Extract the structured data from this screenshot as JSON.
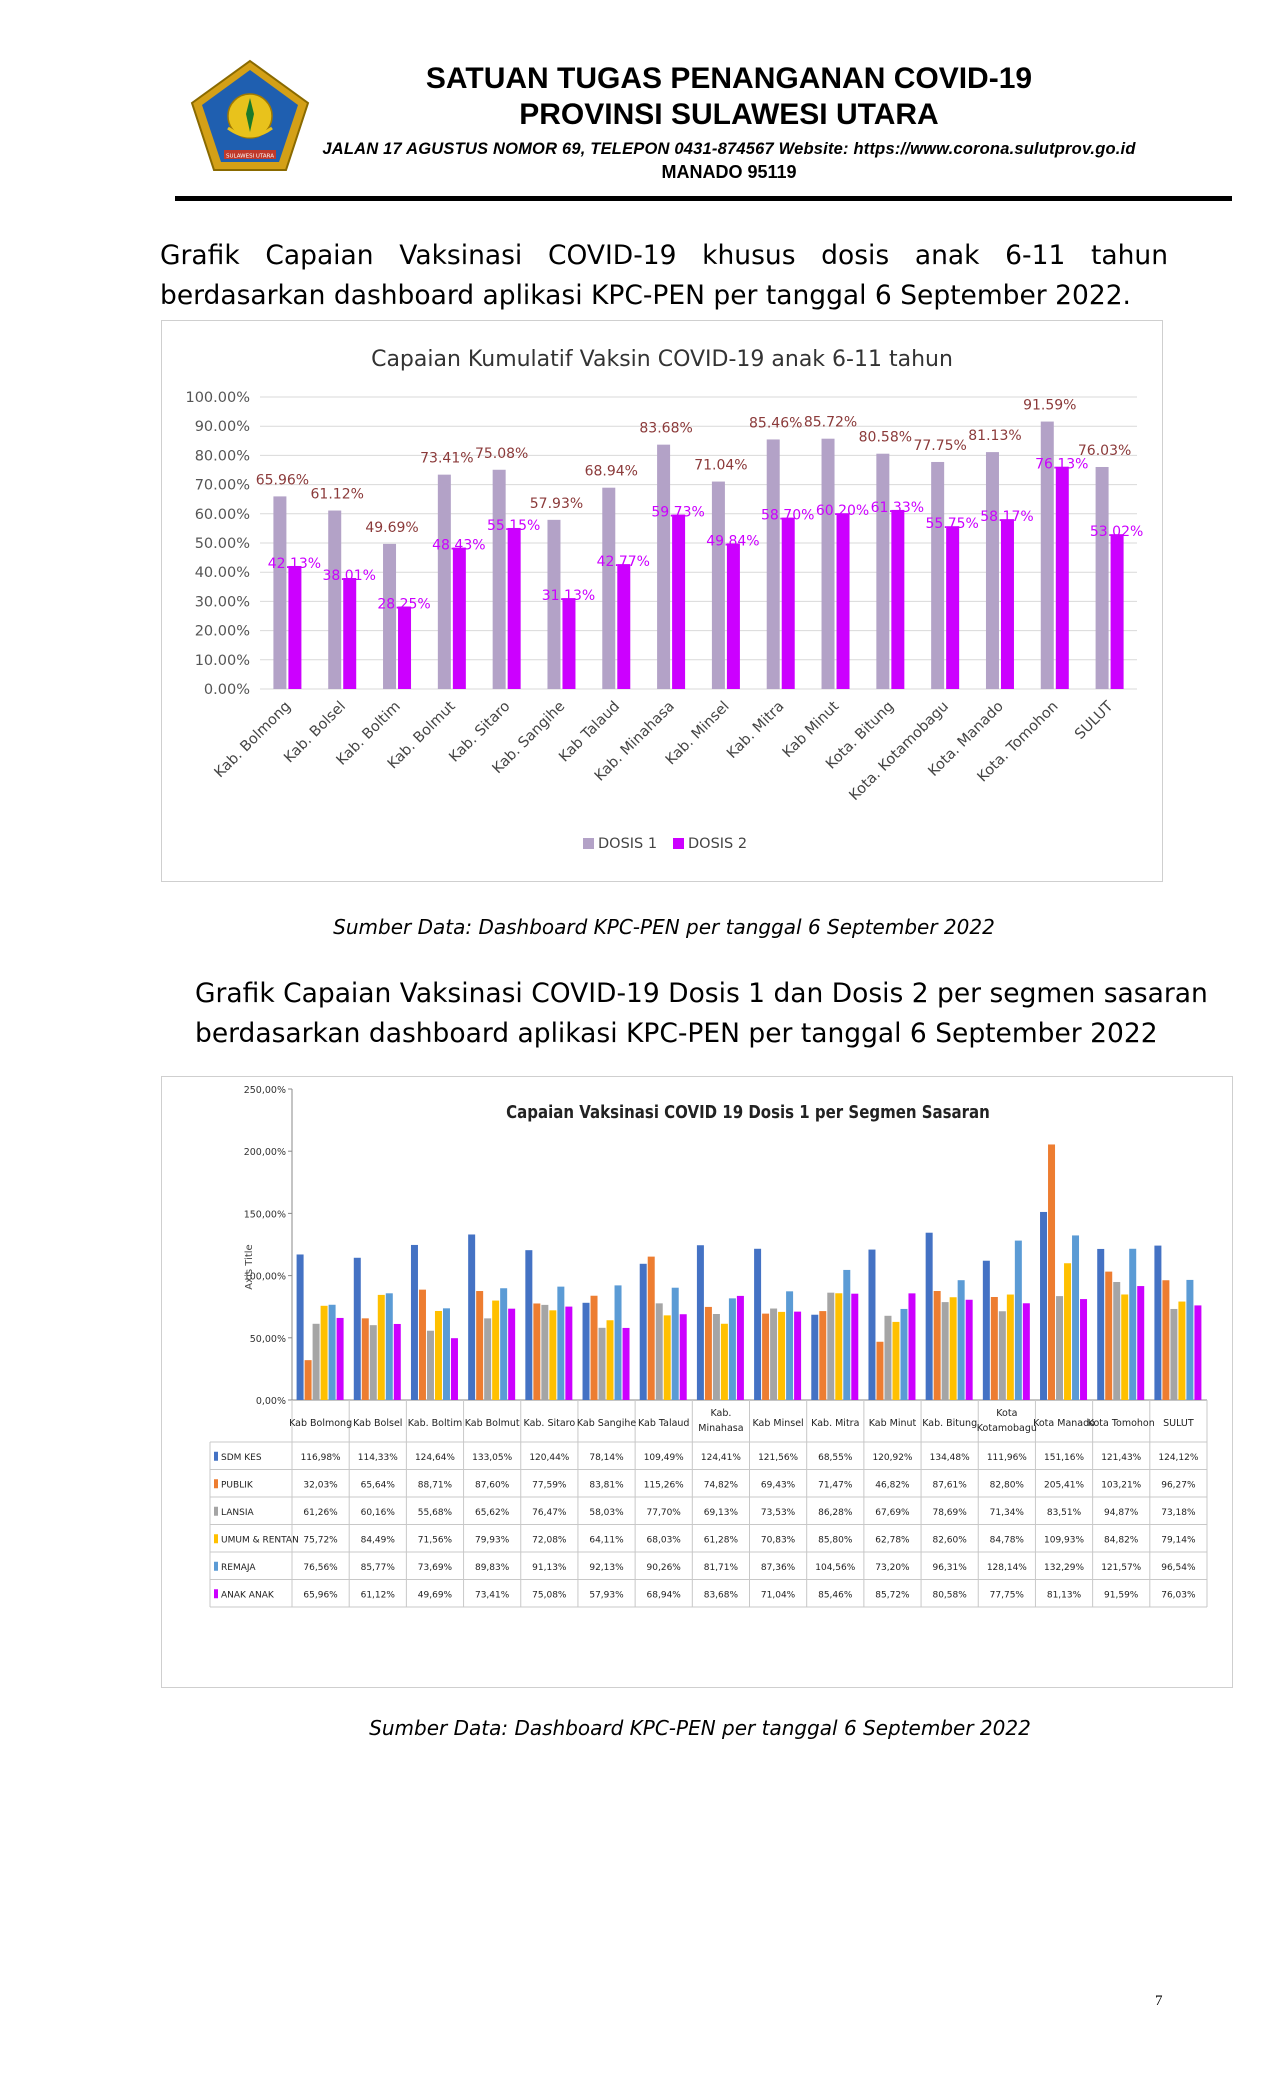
{
  "header": {
    "title_line1": "SATUAN TUGAS PENANGANAN COVID-19",
    "title_line2": "PROVINSI SULAWESI UTARA",
    "address": "JALAN  17  AGUSTUS  NOMOR  69,  TELEPON  0431-874567  Website:  https://www.corona.sulutprov.go.id",
    "city": "MANADO  95119",
    "logo_text": "SULAWESI UTARA"
  },
  "section1": {
    "line1": "Grafik Capaian Vaksinasi COVID-19 khusus dosis anak 6-11 tahun",
    "line2": "berdasarkan dashboard aplikasi KPC-PEN per tanggal 6 September 2022.",
    "source": "Sumber Data: Dashboard KPC-PEN per tanggal 6 September 2022"
  },
  "section2": {
    "line1": "Grafik Capaian Vaksinasi COVID-19 Dosis 1 dan Dosis 2 per segmen sasaran",
    "line2": "berdasarkan dashboard aplikasi KPC-PEN per tanggal 6 September 2022",
    "source": "Sumber Data: Dashboard KPC-PEN per tanggal 6 September 2022"
  },
  "page_number": "7",
  "colors": {
    "dosis1": "#b3a2c7",
    "dosis2": "#cc00ff",
    "label_d1": "#8b3a3a",
    "label_d2": "#cc00ff",
    "sdm_kes": "#4472c4",
    "publik": "#ed7d31",
    "lansia": "#a5a5a5",
    "umum_rentan": "#ffc000",
    "remaja": "#5b9bd5",
    "anak_anak": "#cc00ff"
  },
  "chart_data": [
    {
      "type": "bar",
      "title": "Capaian Kumulatif Vaksin COVID-19 anak 6-11 tahun",
      "categories": [
        "Kab. Bolmong",
        "Kab. Bolsel",
        "Kab. Boltim",
        "Kab. Bolmut",
        "Kab. Sitaro",
        "Kab. Sangihe",
        "Kab Talaud",
        "Kab. Minahasa",
        "Kab. Minsel",
        "Kab. Mitra",
        "Kab Minut",
        "Kota. Bitung",
        "Kota. Kotamobagu",
        "Kota. Manado",
        "Kota. Tomohon",
        "SULUT"
      ],
      "series": [
        {
          "name": "DOSIS 1",
          "values": [
            65.96,
            61.12,
            49.69,
            73.41,
            75.08,
            57.93,
            68.94,
            83.68,
            71.04,
            85.46,
            85.72,
            80.58,
            77.75,
            81.13,
            91.59,
            76.03
          ],
          "labels": [
            "65.96%",
            "61.12%",
            "49.69%",
            "73.41%",
            "75.08%",
            "57.93%",
            "68.94%",
            "83.68%",
            "71.04%",
            "85.46%",
            "85.72%",
            "80.58%",
            "77.75%",
            "81.13%",
            "91.59%",
            "76.03%"
          ]
        },
        {
          "name": "DOSIS 2",
          "values": [
            42.13,
            38.01,
            28.25,
            48.43,
            55.15,
            31.13,
            42.77,
            59.73,
            49.84,
            58.7,
            60.2,
            61.33,
            55.75,
            58.17,
            76.13,
            53.02
          ],
          "labels": [
            "42.13%",
            "38.01%",
            "28.25%",
            "48.43%",
            "55.15%",
            "31.13%",
            "42.77%",
            "59.73%",
            "49.84%",
            "58.70%",
            "60.20%",
            "61.33%",
            "55.75%",
            "58.17%",
            "76.13%",
            "53.02%"
          ]
        }
      ],
      "ylim": [
        0,
        100
      ],
      "yticks": [
        "0.00%",
        "10.00%",
        "20.00%",
        "30.00%",
        "40.00%",
        "50.00%",
        "60.00%",
        "70.00%",
        "80.00%",
        "90.00%",
        "100.00%"
      ],
      "legend": "bottom",
      "grid": true
    },
    {
      "type": "bar",
      "title": "Capaian Vaksinasi COVID 19 Dosis 1 per Segmen Sasaran",
      "ylabel": "Axis Title",
      "categories": [
        "Kab Bolmong",
        "Kab Bolsel",
        "Kab. Boltim",
        "Kab Bolmut",
        "Kab. Sitaro",
        "Kab Sangihe",
        "Kab Talaud",
        "Kab. Minahasa",
        "Kab Minsel",
        "Kab. Mitra",
        "Kab Minut",
        "Kab. Bitung",
        "Kota Kotamobagu",
        "Kota Manado",
        "Kota Tomohon",
        "SULUT"
      ],
      "series": [
        {
          "name": "SDM KES",
          "values": [
            116.98,
            114.33,
            124.64,
            133.05,
            120.44,
            78.14,
            109.49,
            124.41,
            121.56,
            68.55,
            120.92,
            134.48,
            111.96,
            151.16,
            121.43,
            124.12
          ],
          "labels": [
            "116,98%",
            "114,33%",
            "124,64%",
            "133,05%",
            "120,44%",
            "78,14%",
            "109,49%",
            "124,41%",
            "121,56%",
            "68,55%",
            "120,92%",
            "134,48%",
            "111,96%",
            "151,16%",
            "121,43%",
            "124,12%"
          ]
        },
        {
          "name": "PUBLIK",
          "values": [
            32.03,
            65.64,
            88.71,
            87.6,
            77.59,
            83.81,
            115.26,
            74.82,
            69.43,
            71.47,
            46.82,
            87.61,
            82.8,
            205.41,
            103.21,
            96.27
          ],
          "labels": [
            "32,03%",
            "65,64%",
            "88,71%",
            "87,60%",
            "77,59%",
            "83,81%",
            "115,26%",
            "74,82%",
            "69,43%",
            "71,47%",
            "46,82%",
            "87,61%",
            "82,80%",
            "205,41%",
            "103,21%",
            "96,27%"
          ]
        },
        {
          "name": "LANSIA",
          "values": [
            61.26,
            60.16,
            55.68,
            65.62,
            76.47,
            58.03,
            77.7,
            69.13,
            73.53,
            86.28,
            67.69,
            78.69,
            71.34,
            83.51,
            94.87,
            73.18
          ],
          "labels": [
            "61,26%",
            "60,16%",
            "55,68%",
            "65,62%",
            "76,47%",
            "58,03%",
            "77,70%",
            "69,13%",
            "73,53%",
            "86,28%",
            "67,69%",
            "78,69%",
            "71,34%",
            "83,51%",
            "94,87%",
            "73,18%"
          ]
        },
        {
          "name": "UMUM & RENTAN",
          "values": [
            75.72,
            84.49,
            71.56,
            79.93,
            72.08,
            64.11,
            68.03,
            61.28,
            70.83,
            85.8,
            62.78,
            82.6,
            84.78,
            109.93,
            84.82,
            79.14
          ],
          "labels": [
            "75,72%",
            "84,49%",
            "71,56%",
            "79,93%",
            "72,08%",
            "64,11%",
            "68,03%",
            "61,28%",
            "70,83%",
            "85,80%",
            "62,78%",
            "82,60%",
            "84,78%",
            "109,93%",
            "84,82%",
            "79,14%"
          ]
        },
        {
          "name": "REMAJA",
          "values": [
            76.56,
            85.77,
            73.69,
            89.83,
            91.13,
            92.13,
            90.26,
            81.71,
            87.36,
            104.56,
            73.2,
            96.31,
            128.14,
            132.29,
            121.57,
            96.54
          ],
          "labels": [
            "76,56%",
            "85,77%",
            "73,69%",
            "89,83%",
            "91,13%",
            "92,13%",
            "90,26%",
            "81,71%",
            "87,36%",
            "104,56%",
            "73,20%",
            "96,31%",
            "128,14%",
            "132,29%",
            "121,57%",
            "96,54%"
          ]
        },
        {
          "name": "ANAK ANAK",
          "values": [
            65.96,
            61.12,
            49.69,
            73.41,
            75.08,
            57.93,
            68.94,
            83.68,
            71.04,
            85.46,
            85.72,
            80.58,
            77.75,
            81.13,
            91.59,
            76.03
          ],
          "labels": [
            "65,96%",
            "61,12%",
            "49,69%",
            "73,41%",
            "75,08%",
            "57,93%",
            "68,94%",
            "83,68%",
            "71,04%",
            "85,46%",
            "85,72%",
            "80,58%",
            "77,75%",
            "81,13%",
            "91,59%",
            "76,03%"
          ]
        }
      ],
      "ylim": [
        0,
        250
      ],
      "yticks": [
        "0,00%",
        "50,00%",
        "100,00%",
        "150,00%",
        "200,00%",
        "250,00%"
      ],
      "legend": "data table",
      "grid": false
    }
  ]
}
